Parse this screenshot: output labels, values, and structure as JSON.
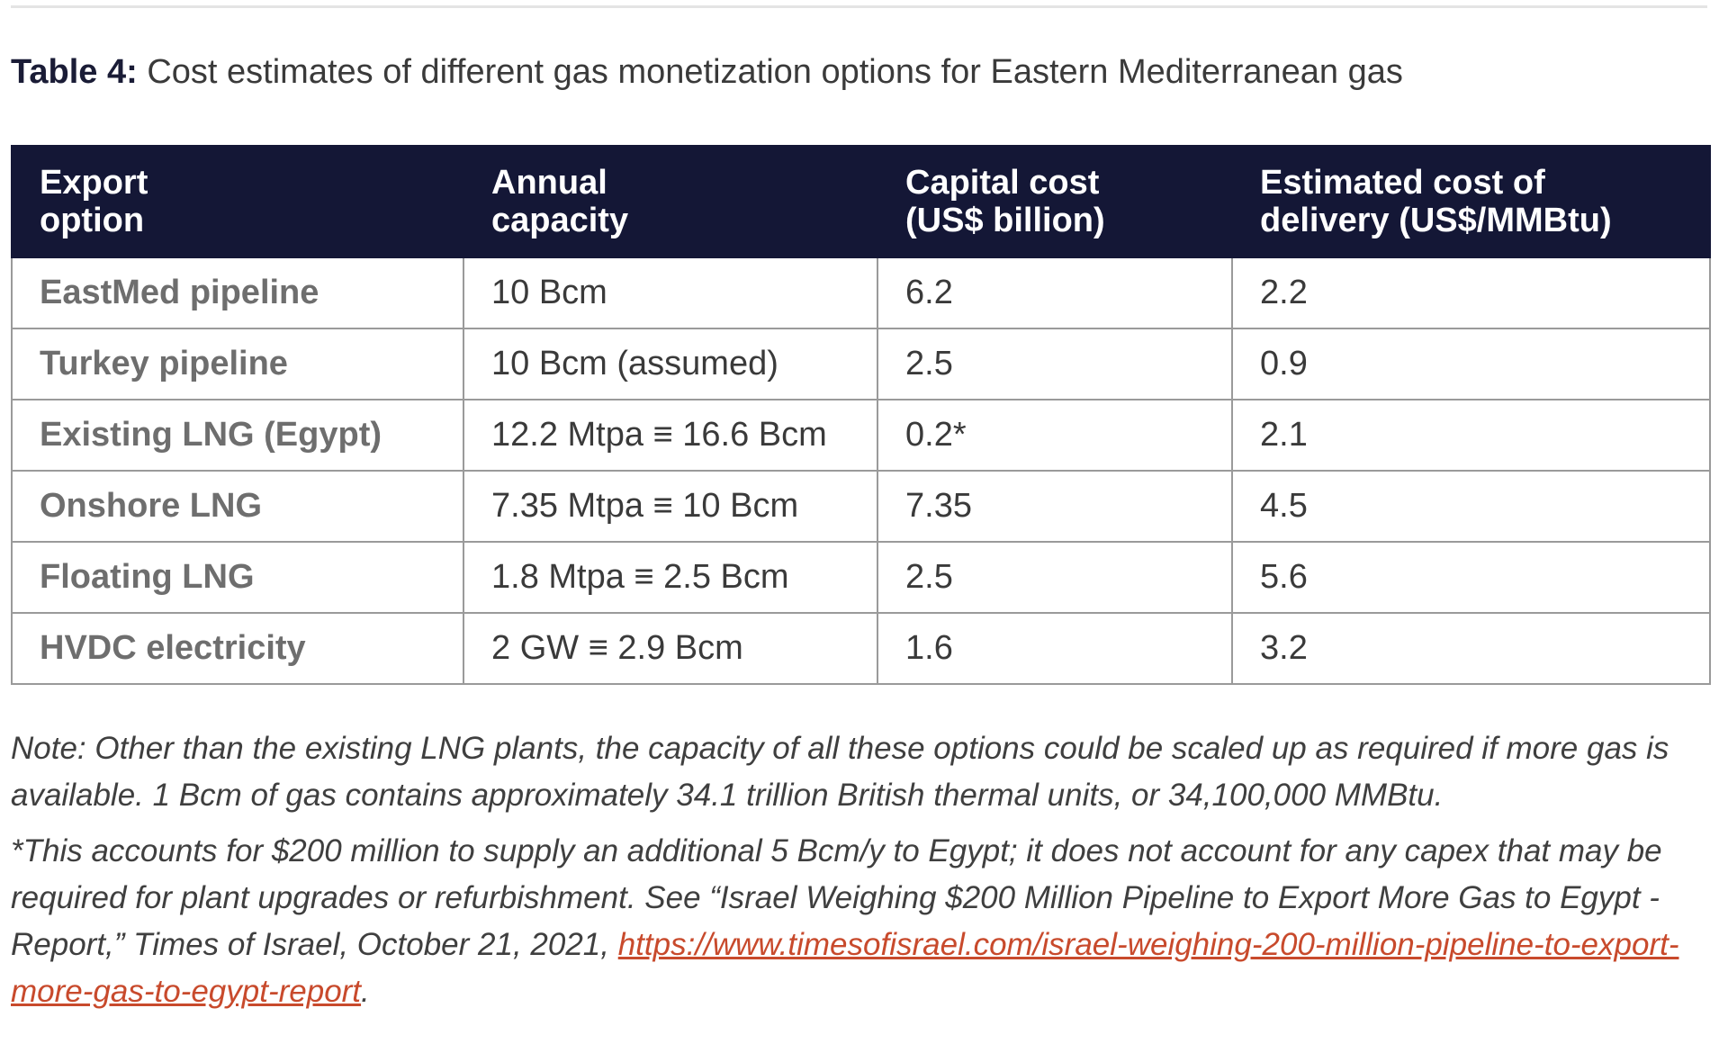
{
  "caption": {
    "label": "Table 4:",
    "text": "Cost estimates of different gas monetization options for Eastern Mediterranean gas"
  },
  "table": {
    "headers": [
      [
        "Export",
        "option"
      ],
      [
        "Annual",
        "capacity"
      ],
      [
        "Capital cost",
        "(US$ billion)"
      ],
      [
        "Estimated cost of",
        "delivery (US$/MMBtu)"
      ]
    ],
    "rows": [
      [
        "EastMed pipeline",
        "10 Bcm",
        "6.2",
        "2.2"
      ],
      [
        "Turkey pipeline",
        "10 Bcm (assumed)",
        "2.5",
        "0.9"
      ],
      [
        "Existing LNG (Egypt)",
        "12.2 Mtpa ≡ 16.6 Bcm",
        "0.2*",
        "2.1"
      ],
      [
        "Onshore LNG",
        "7.35 Mtpa ≡ 10 Bcm",
        "7.35",
        "4.5"
      ],
      [
        "Floating LNG",
        "1.8 Mtpa ≡ 2.5 Bcm",
        "2.5",
        "5.6"
      ],
      [
        "HVDC electricity",
        "2 GW ≡ 2.9 Bcm",
        "1.6",
        "3.2"
      ]
    ]
  },
  "notes": {
    "note": "Note: Other than the existing LNG plants, the capacity of all these options could be scaled up as required if more gas is available. 1 Bcm of gas contains approximately 34.1 trillion British thermal units, or 34,100,000 MMBtu.",
    "footnote_text": "*This accounts for $200 million to supply an additional 5 Bcm/y to Egypt; it does not account for any capex that may be required for plant upgrades or refurbishment. See “Israel Weighing $200 Million Pipeline to Export More Gas to Egypt -Report,” Times of Israel, October 21, 2021, ",
    "link_text": "https://www.timesofisrael.com/israel-weighing-200-million-pipeline-to-export-more-gas-to-egypt-report",
    "footnote_end": "."
  },
  "colors": {
    "header_bg": "#141736",
    "link": "#c84a2c",
    "border": "#9a9a9a"
  }
}
